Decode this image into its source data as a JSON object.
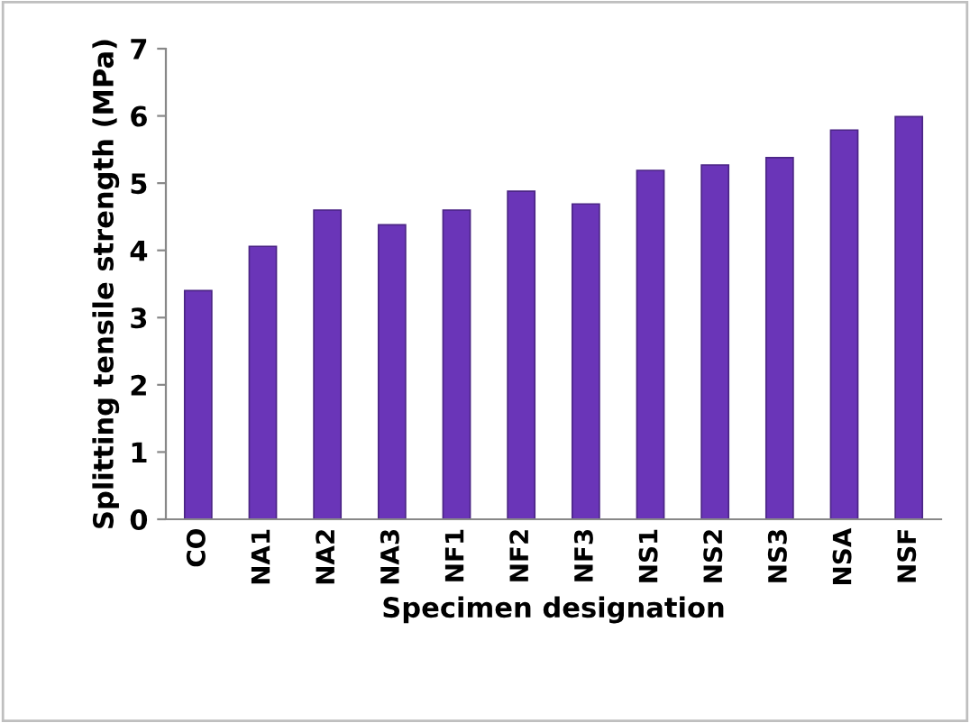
{
  "chart_data": {
    "type": "bar",
    "xlabel": "Specimen designation",
    "ylabel": "Splitting tensile strength (MPa)",
    "categories": [
      "CO",
      "NA1",
      "NA2",
      "NA3",
      "NF1",
      "NF2",
      "NF3",
      "NS1",
      "NS2",
      "NS3",
      "NSA",
      "NSF"
    ],
    "values": [
      3.4,
      4.06,
      4.6,
      4.38,
      4.6,
      4.88,
      4.69,
      5.19,
      5.27,
      5.38,
      5.79,
      5.99
    ],
    "color": "#6a35b8",
    "ylim": [
      0,
      7
    ],
    "yticks": [
      0,
      1,
      2,
      3,
      4,
      5,
      6,
      7
    ],
    "grid": false
  }
}
